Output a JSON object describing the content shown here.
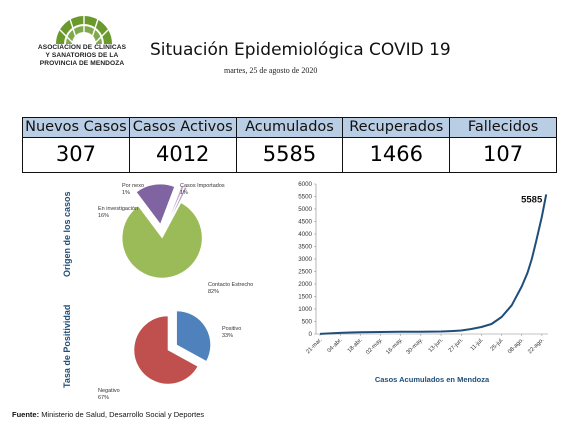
{
  "logo": {
    "line1": "ASOCIACION DE CLINICAS",
    "line2": "Y SANATORIOS DE LA",
    "line3": "PROVINCIA DE MENDOZA",
    "color": "#6a9a2c"
  },
  "header": {
    "title": "Situación Epidemiológica COVID 19",
    "date": "martes, 25 de agosto de 2020"
  },
  "stats": [
    {
      "label": "Nuevos Casos",
      "value": "307"
    },
    {
      "label": "Casos Activos",
      "value": "4012"
    },
    {
      "label": "Acumulados",
      "value": "5585"
    },
    {
      "label": "Recuperados",
      "value": "1466"
    },
    {
      "label": "Fallecidos",
      "value": "107"
    }
  ],
  "colors": {
    "header_bg": "#b9cde5",
    "line": "#1f4e79",
    "pie_green": "#9bbb59",
    "pie_purple": "#8064a2",
    "pie_pink": "#c7a6c2",
    "pie_lavender": "#b3a2c7",
    "pie_blue": "#4f81bd",
    "pie_red": "#c0504d"
  },
  "chart_data": [
    {
      "type": "pie",
      "title": "Origen de los casos",
      "slices": [
        {
          "label": "Contacto Estrecho",
          "percent_label": "82%",
          "value": 82,
          "color": "#9bbb59"
        },
        {
          "label": "En investigación",
          "percent_label": "16%",
          "value": 16,
          "color": "#8064a2"
        },
        {
          "label": "Por nexo",
          "percent_label": "1%",
          "value": 1,
          "color": "#c7a6c2"
        },
        {
          "label": "Casos Importados",
          "percent_label": "1%",
          "value": 1,
          "color": "#b3a2c7"
        }
      ]
    },
    {
      "type": "pie",
      "title": "Tasa de Positividad",
      "slices": [
        {
          "label": "Positivo",
          "percent_label": "33%",
          "value": 33,
          "color": "#4f81bd"
        },
        {
          "label": "Negativo",
          "percent_label": "67%",
          "value": 67,
          "color": "#c0504d"
        }
      ]
    },
    {
      "type": "line",
      "title": "",
      "xlabel": "Casos Acumulados en Mendoza",
      "ylabel": "",
      "ylim": [
        0,
        6000
      ],
      "yticks": [
        "0",
        "500",
        "1000",
        "1500",
        "2000",
        "2500",
        "3000",
        "3500",
        "4000",
        "4500",
        "5000",
        "5500",
        "6000"
      ],
      "xticks": [
        "21-mar.",
        "04-abr.",
        "18-abr.",
        "02-may.",
        "16-may.",
        "30-may.",
        "13-jun.",
        "27-jun.",
        "11-jul.",
        "25-jul.",
        "08-ago.",
        "22-ago."
      ],
      "end_label": "5585",
      "x": [
        "21-mar.",
        "28-mar.",
        "04-abr.",
        "11-abr.",
        "18-abr.",
        "25-abr.",
        "02-may.",
        "09-may.",
        "16-may.",
        "23-may.",
        "30-may.",
        "06-jun.",
        "13-jun.",
        "20-jun.",
        "27-jun.",
        "04-jul.",
        "11-jul.",
        "18-jul.",
        "25-jul.",
        "01-ago.",
        "08-ago.",
        "12-ago.",
        "15-ago.",
        "18-ago.",
        "22-ago.",
        "25-ago."
      ],
      "y": [
        5,
        25,
        45,
        60,
        70,
        75,
        80,
        85,
        88,
        90,
        92,
        95,
        100,
        115,
        140,
        200,
        280,
        400,
        680,
        1150,
        1900,
        2450,
        3000,
        3700,
        4700,
        5585
      ]
    }
  ]
}
